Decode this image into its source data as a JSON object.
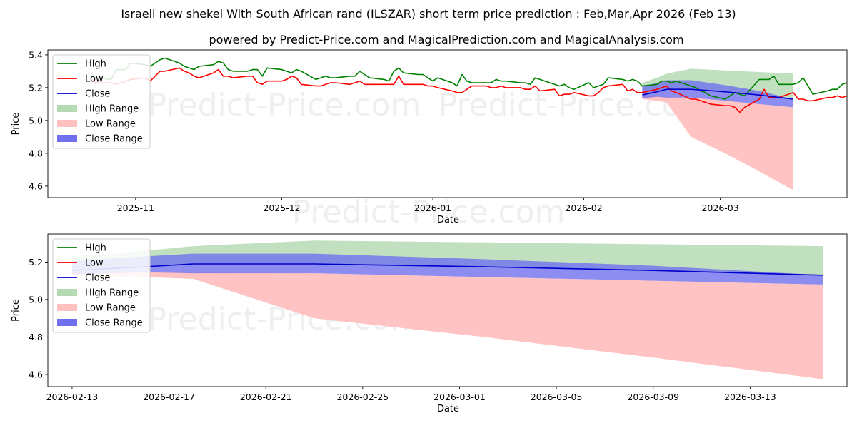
{
  "title_line1": "Israeli new shekel With South African rand (ILSZAR) short term price prediction : Feb,Mar,Apr 2026 (Feb 13)",
  "title_line2": "powered by Predict-Price.com and MagicalPrediction.com and MagicalAnalysis.com",
  "watermark": "Predict-Price.com",
  "colors": {
    "high": "#008000",
    "low": "#ff0000",
    "close": "#0000cc",
    "high_range": "#b5dbb5",
    "low_range": "#ffc0c0",
    "close_range": "#7070ee"
  },
  "legend": [
    "High",
    "Low",
    "Close",
    "High Range",
    "Low Range",
    "Close Range"
  ],
  "chart_data": [
    {
      "type": "line",
      "xlabel": "Date",
      "ylabel": "Price",
      "x_domain": [
        "2025-10-14",
        "2026-03-27"
      ],
      "ylim": [
        4.53,
        5.43
      ],
      "yticks": [
        "4.6",
        "4.8",
        "5.0",
        "5.2",
        "5.4"
      ],
      "xticks": [
        {
          "date": "2025-11-01",
          "label": "2025-11"
        },
        {
          "date": "2025-12-01",
          "label": "2025-12"
        },
        {
          "date": "2026-01-01",
          "label": "2026-01"
        },
        {
          "date": "2026-02-01",
          "label": "2026-02"
        },
        {
          "date": "2026-03-01",
          "label": "2026-03"
        }
      ],
      "series": [
        {
          "name": "High",
          "start": "2025-10-23",
          "values": [
            5.28,
            5.26,
            5.25,
            5.31,
            5.31,
            5.31,
            5.35,
            5.34,
            5.33,
            5.35,
            5.37,
            5.38,
            5.35,
            5.33,
            5.32,
            5.31,
            5.33,
            5.34,
            5.36,
            5.35,
            5.31,
            5.3,
            5.3,
            5.31,
            5.31,
            5.27,
            5.32,
            5.31,
            5.3,
            5.29,
            5.31,
            5.3,
            5.25,
            5.26,
            5.27,
            5.26,
            5.26,
            5.27,
            5.27,
            5.3,
            5.28,
            5.26,
            5.25,
            5.24,
            5.3,
            5.32,
            5.29,
            5.28,
            5.28,
            5.26,
            5.24,
            5.26,
            5.23,
            5.21,
            5.28,
            5.24,
            5.23,
            5.23,
            5.23,
            5.25,
            5.24,
            5.24,
            5.23,
            5.23,
            5.22,
            5.26,
            5.25,
            5.22,
            5.21,
            5.22,
            5.2,
            5.19,
            5.23,
            5.2,
            5.21,
            5.22,
            5.26,
            5.25,
            5.24,
            5.25,
            5.24,
            5.21,
            5.22,
            5.24,
            5.24,
            5.23,
            5.24,
            5.21,
            5.2,
            5.18,
            5.17,
            5.15,
            5.13,
            5.15,
            5.17,
            5.16,
            5.15,
            5.25,
            5.25,
            5.25,
            5.27,
            5.22,
            5.22,
            5.23,
            5.26,
            5.21,
            5.16,
            5.18,
            5.19,
            5.19,
            5.22,
            5.23
          ]
        },
        {
          "name": "Low",
          "start": "2025-10-23",
          "values": [
            5.25,
            5.23,
            5.23,
            5.22,
            5.23,
            5.24,
            5.25,
            5.26,
            5.24,
            5.27,
            5.3,
            5.3,
            5.32,
            5.3,
            5.29,
            5.27,
            5.26,
            5.29,
            5.31,
            5.27,
            5.27,
            5.26,
            5.27,
            5.27,
            5.23,
            5.22,
            5.24,
            5.24,
            5.25,
            5.27,
            5.26,
            5.22,
            5.21,
            5.21,
            5.22,
            5.23,
            5.23,
            5.22,
            5.23,
            5.24,
            5.22,
            5.22,
            5.22,
            5.22,
            5.22,
            5.27,
            5.22,
            5.22,
            5.22,
            5.21,
            5.21,
            5.2,
            5.18,
            5.17,
            5.17,
            5.19,
            5.21,
            5.21,
            5.2,
            5.2,
            5.21,
            5.2,
            5.2,
            5.19,
            5.19,
            5.21,
            5.18,
            5.19,
            5.15,
            5.16,
            5.16,
            5.17,
            5.15,
            5.15,
            5.17,
            5.2,
            5.21,
            5.22,
            5.18,
            5.19,
            5.17,
            5.17,
            5.19,
            5.2,
            5.21,
            5.18,
            5.17,
            5.13,
            5.13,
            5.12,
            5.11,
            5.1,
            5.09,
            5.09,
            5.08,
            5.05,
            5.08,
            5.13,
            5.19,
            5.14,
            5.14,
            5.14,
            5.17,
            5.13,
            5.13,
            5.12,
            5.12,
            5.14,
            5.14,
            5.15,
            5.14,
            5.15
          ]
        },
        {
          "name": "Close",
          "dates": [
            "2026-02-13",
            "2026-02-16",
            "2026-02-18",
            "2026-02-23",
            "2026-03-02",
            "2026-03-09",
            "2026-03-16"
          ],
          "values": [
            5.155,
            5.175,
            5.19,
            5.19,
            5.175,
            5.155,
            5.13
          ]
        }
      ],
      "ranges": [
        {
          "name": "High Range",
          "dates": [
            "2026-02-13",
            "2026-02-16",
            "2026-02-18",
            "2026-02-23",
            "2026-03-02",
            "2026-03-09",
            "2026-03-16"
          ],
          "upper": [
            5.23,
            5.26,
            5.285,
            5.315,
            5.305,
            5.295,
            5.285
          ],
          "lower": [
            5.16,
            5.17,
            5.19,
            5.19,
            5.175,
            5.155,
            5.13
          ]
        },
        {
          "name": "Low Range",
          "dates": [
            "2026-02-13",
            "2026-02-16",
            "2026-02-18",
            "2026-02-23",
            "2026-03-02",
            "2026-03-09",
            "2026-03-16"
          ],
          "upper": [
            5.15,
            5.15,
            5.145,
            5.14,
            5.12,
            5.1,
            5.08
          ],
          "lower": [
            5.13,
            5.12,
            5.11,
            4.9,
            4.8,
            4.69,
            4.575
          ]
        },
        {
          "name": "Close Range",
          "dates": [
            "2026-02-13",
            "2026-02-16",
            "2026-02-18",
            "2026-02-23",
            "2026-03-02",
            "2026-03-09",
            "2026-03-16"
          ],
          "upper": [
            5.205,
            5.23,
            5.245,
            5.245,
            5.215,
            5.18,
            5.13
          ],
          "lower": [
            5.135,
            5.145,
            5.14,
            5.14,
            5.12,
            5.1,
            5.08
          ]
        }
      ]
    },
    {
      "type": "line",
      "xlabel": "Date",
      "ylabel": "Price",
      "x_domain": [
        "2026-02-12",
        "2026-03-17"
      ],
      "ylim": [
        4.535,
        5.35
      ],
      "yticks": [
        "4.6",
        "4.8",
        "5.0",
        "5.2"
      ],
      "xticks": [
        {
          "date": "2026-02-13",
          "label": "2026-02-13"
        },
        {
          "date": "2026-02-17",
          "label": "2026-02-17"
        },
        {
          "date": "2026-02-21",
          "label": "2026-02-21"
        },
        {
          "date": "2026-02-25",
          "label": "2026-02-25"
        },
        {
          "date": "2026-03-01",
          "label": "2026-03-01"
        },
        {
          "date": "2026-03-05",
          "label": "2026-03-05"
        },
        {
          "date": "2026-03-09",
          "label": "2026-03-09"
        },
        {
          "date": "2026-03-13",
          "label": "2026-03-13"
        }
      ],
      "series": [
        {
          "name": "Close",
          "dates": [
            "2026-02-13",
            "2026-02-16",
            "2026-02-18",
            "2026-02-23",
            "2026-03-02",
            "2026-03-09",
            "2026-03-16"
          ],
          "values": [
            5.155,
            5.175,
            5.19,
            5.19,
            5.175,
            5.155,
            5.13
          ]
        }
      ],
      "ranges": [
        {
          "name": "High Range",
          "dates": [
            "2026-02-13",
            "2026-02-16",
            "2026-02-18",
            "2026-02-23",
            "2026-03-02",
            "2026-03-09",
            "2026-03-16"
          ],
          "upper": [
            5.23,
            5.26,
            5.285,
            5.315,
            5.305,
            5.295,
            5.285
          ],
          "lower": [
            5.16,
            5.17,
            5.19,
            5.19,
            5.175,
            5.155,
            5.13
          ]
        },
        {
          "name": "Low Range",
          "dates": [
            "2026-02-13",
            "2026-02-16",
            "2026-02-18",
            "2026-02-23",
            "2026-03-02",
            "2026-03-09",
            "2026-03-16"
          ],
          "upper": [
            5.15,
            5.15,
            5.145,
            5.14,
            5.12,
            5.1,
            5.08
          ],
          "lower": [
            5.13,
            5.12,
            5.11,
            4.9,
            4.8,
            4.69,
            4.575
          ]
        },
        {
          "name": "Close Range",
          "dates": [
            "2026-02-13",
            "2026-02-16",
            "2026-02-18",
            "2026-02-23",
            "2026-03-02",
            "2026-03-09",
            "2026-03-16"
          ],
          "upper": [
            5.205,
            5.23,
            5.245,
            5.245,
            5.215,
            5.18,
            5.13
          ],
          "lower": [
            5.135,
            5.145,
            5.14,
            5.14,
            5.12,
            5.1,
            5.08
          ]
        }
      ]
    }
  ]
}
